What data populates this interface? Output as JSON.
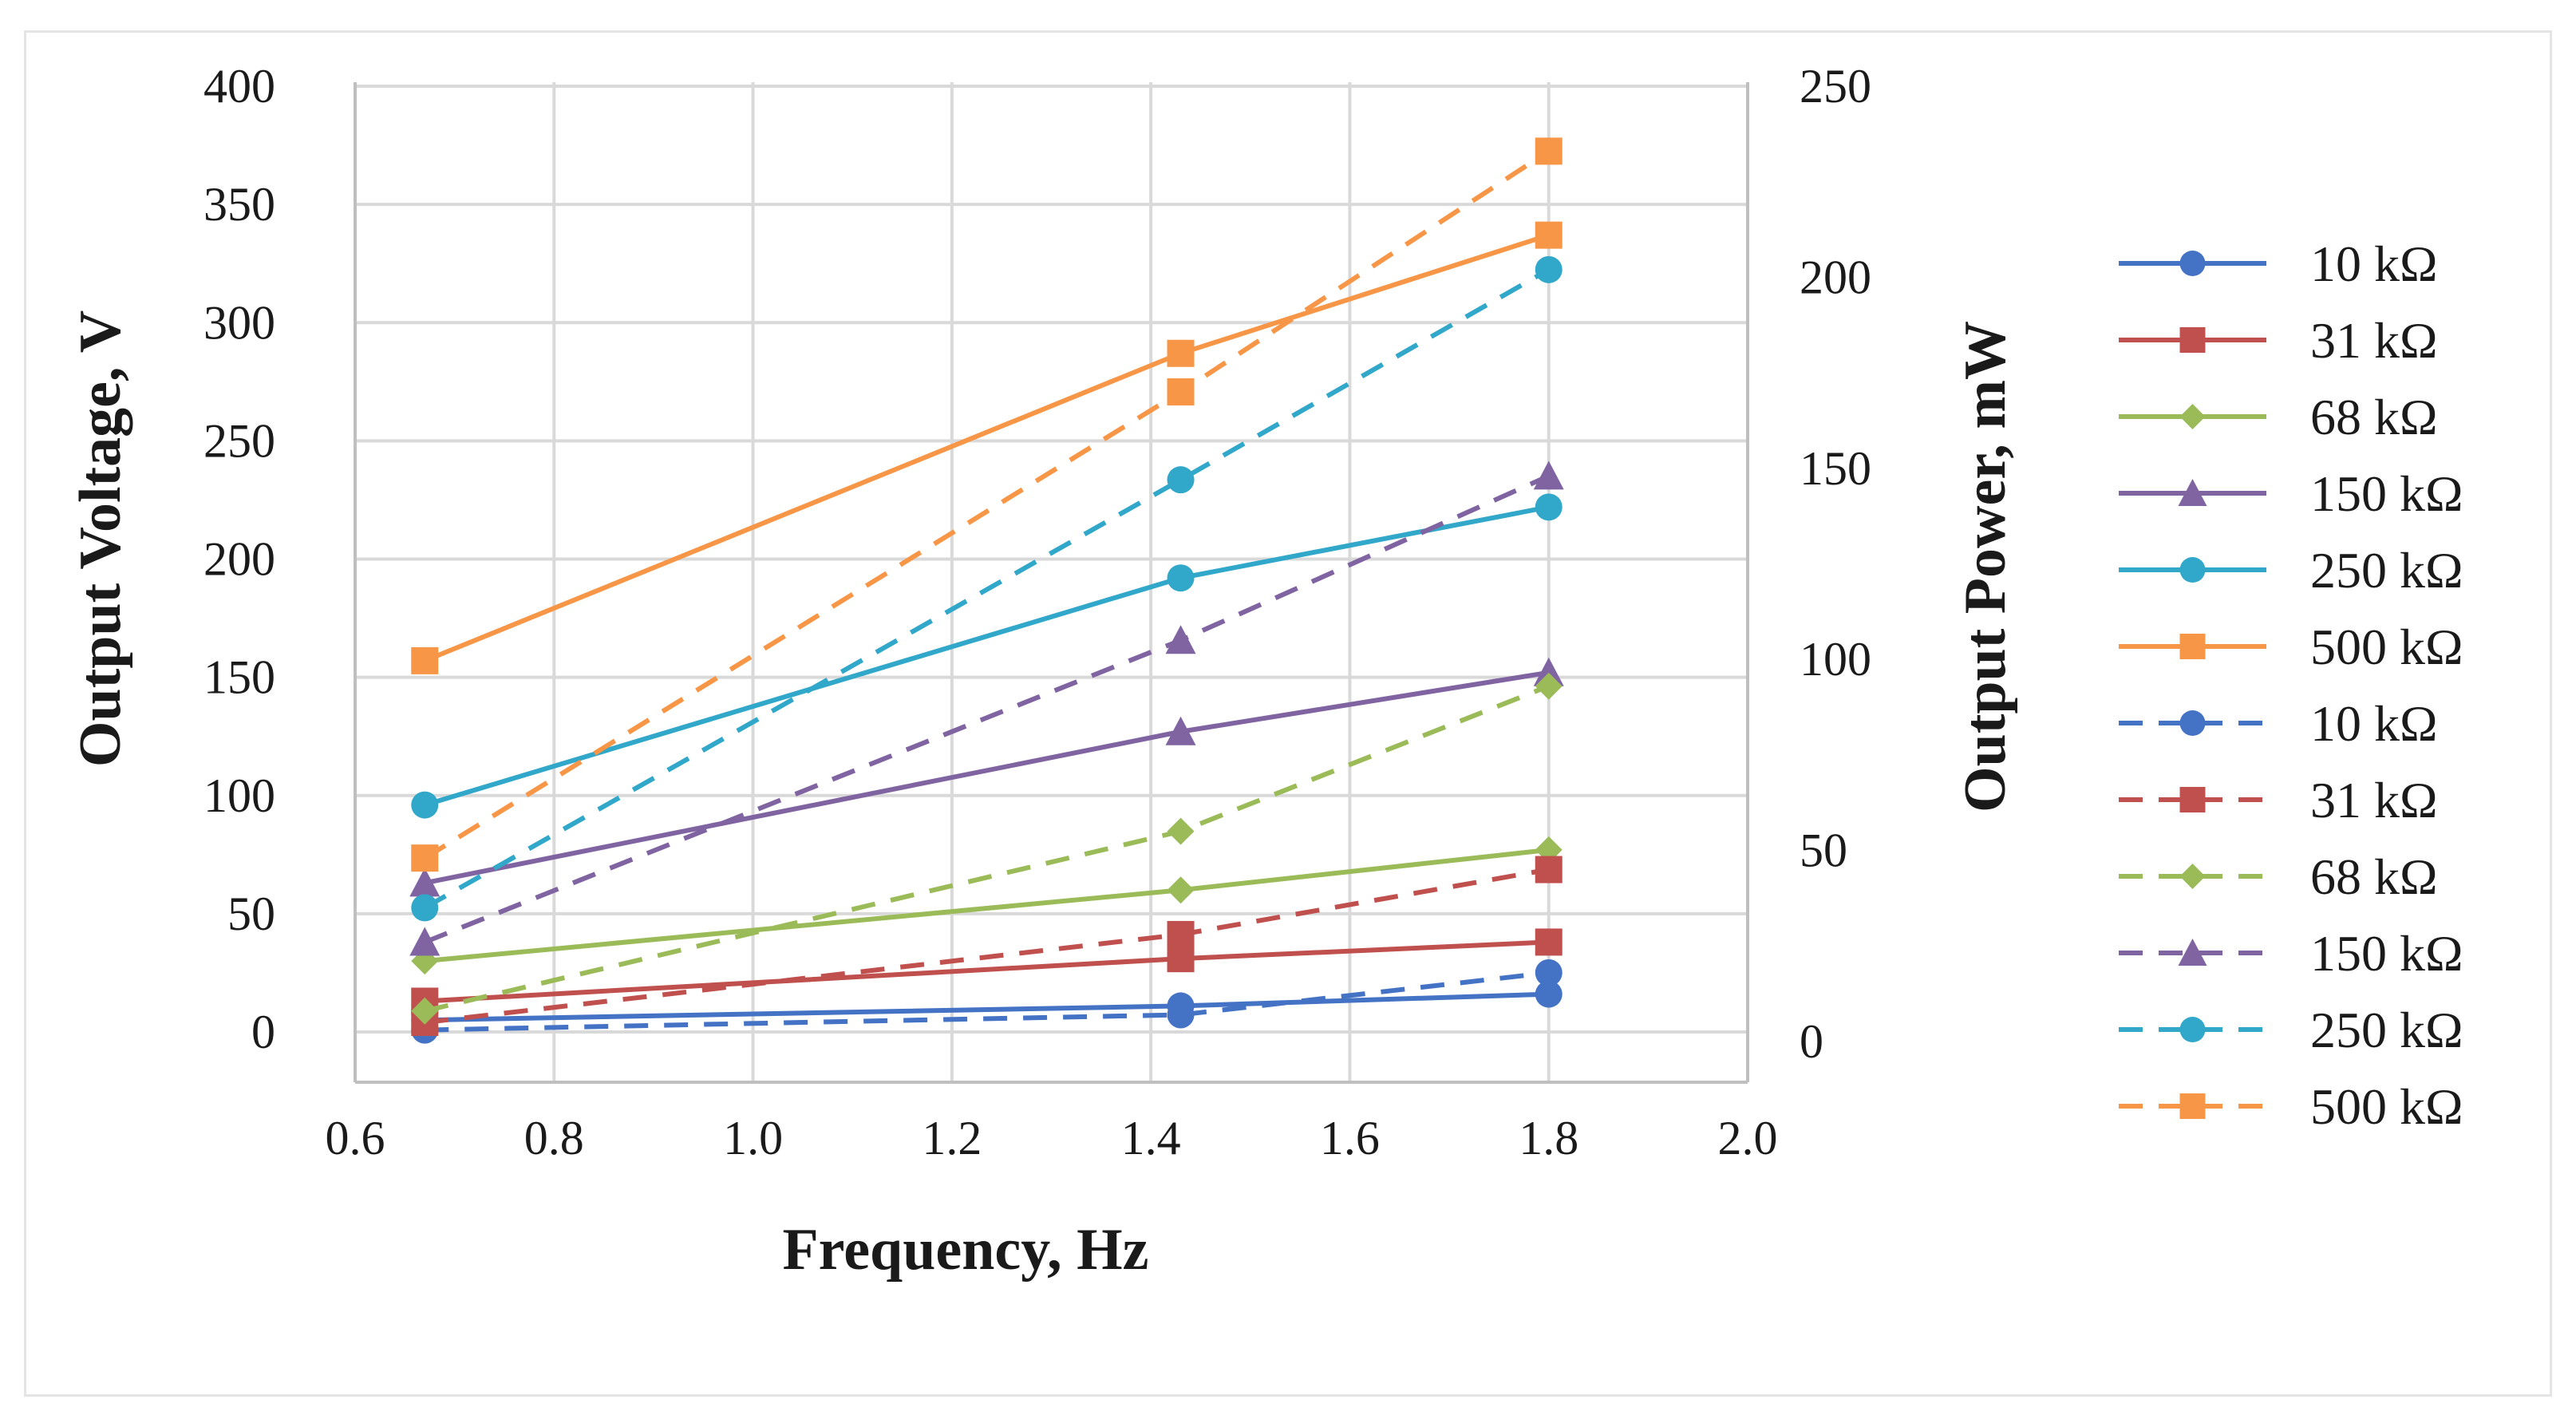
{
  "chart_data": {
    "type": "line",
    "title": "",
    "xlabel": "Frequency, Hz",
    "ylabel": "Output Voltage, V",
    "y2label": "Output Power, mW",
    "xlim": [
      0.6,
      2.0
    ],
    "ylim": [
      0,
      400
    ],
    "y2lim": [
      0,
      250
    ],
    "x_ticks": [
      "0.6",
      "0.8",
      "1.0",
      "1.2",
      "1.4",
      "1.6",
      "1.8",
      "2.0"
    ],
    "y_ticks": [
      "0",
      "50",
      "100",
      "150",
      "200",
      "250",
      "300",
      "350",
      "400"
    ],
    "y2_ticks": [
      "0",
      "50",
      "100",
      "150",
      "200",
      "250"
    ],
    "x": [
      0.67,
      1.43,
      1.8
    ],
    "grid": true,
    "legend_position": "right",
    "series": [
      {
        "name": "10 kΩ",
        "axis": "voltage",
        "style": "solid",
        "marker": "circle",
        "color": "#4472c4",
        "values": [
          5,
          11,
          16
        ]
      },
      {
        "name": "31 kΩ",
        "axis": "voltage",
        "style": "solid",
        "marker": "square",
        "color": "#c0504d",
        "values": [
          13,
          31,
          38
        ]
      },
      {
        "name": "68 kΩ",
        "axis": "voltage",
        "style": "solid",
        "marker": "diamond",
        "color": "#9bbb59",
        "values": [
          30,
          60,
          77
        ]
      },
      {
        "name": "150 kΩ",
        "axis": "voltage",
        "style": "solid",
        "marker": "triangle",
        "color": "#8064a2",
        "values": [
          63,
          127,
          152
        ]
      },
      {
        "name": "250 kΩ",
        "axis": "voltage",
        "style": "solid",
        "marker": "circle",
        "color": "#31a7c9",
        "values": [
          96,
          192,
          222
        ]
      },
      {
        "name": "500 kΩ",
        "axis": "voltage",
        "style": "solid",
        "marker": "square",
        "color": "#f79646",
        "values": [
          157,
          287,
          337
        ]
      },
      {
        "name": "10 kΩ",
        "axis": "power",
        "style": "dashed",
        "marker": "circle",
        "color": "#4472c4",
        "values": [
          3,
          7,
          18
        ]
      },
      {
        "name": "31 kΩ",
        "axis": "power",
        "style": "dashed",
        "marker": "square",
        "color": "#c0504d",
        "values": [
          5,
          28,
          45
        ]
      },
      {
        "name": "68 kΩ",
        "axis": "power",
        "style": "dashed",
        "marker": "diamond",
        "color": "#9bbb59",
        "values": [
          8,
          55,
          93
        ]
      },
      {
        "name": "150 kΩ",
        "axis": "power",
        "style": "dashed",
        "marker": "triangle",
        "color": "#8064a2",
        "values": [
          26,
          105,
          148
        ]
      },
      {
        "name": "250 kΩ",
        "axis": "power",
        "style": "dashed",
        "marker": "circle",
        "color": "#31a7c9",
        "values": [
          35,
          147,
          202
        ]
      },
      {
        "name": "500 kΩ",
        "axis": "power",
        "style": "dashed",
        "marker": "square",
        "color": "#f79646",
        "values": [
          48,
          170,
          233
        ]
      }
    ]
  }
}
